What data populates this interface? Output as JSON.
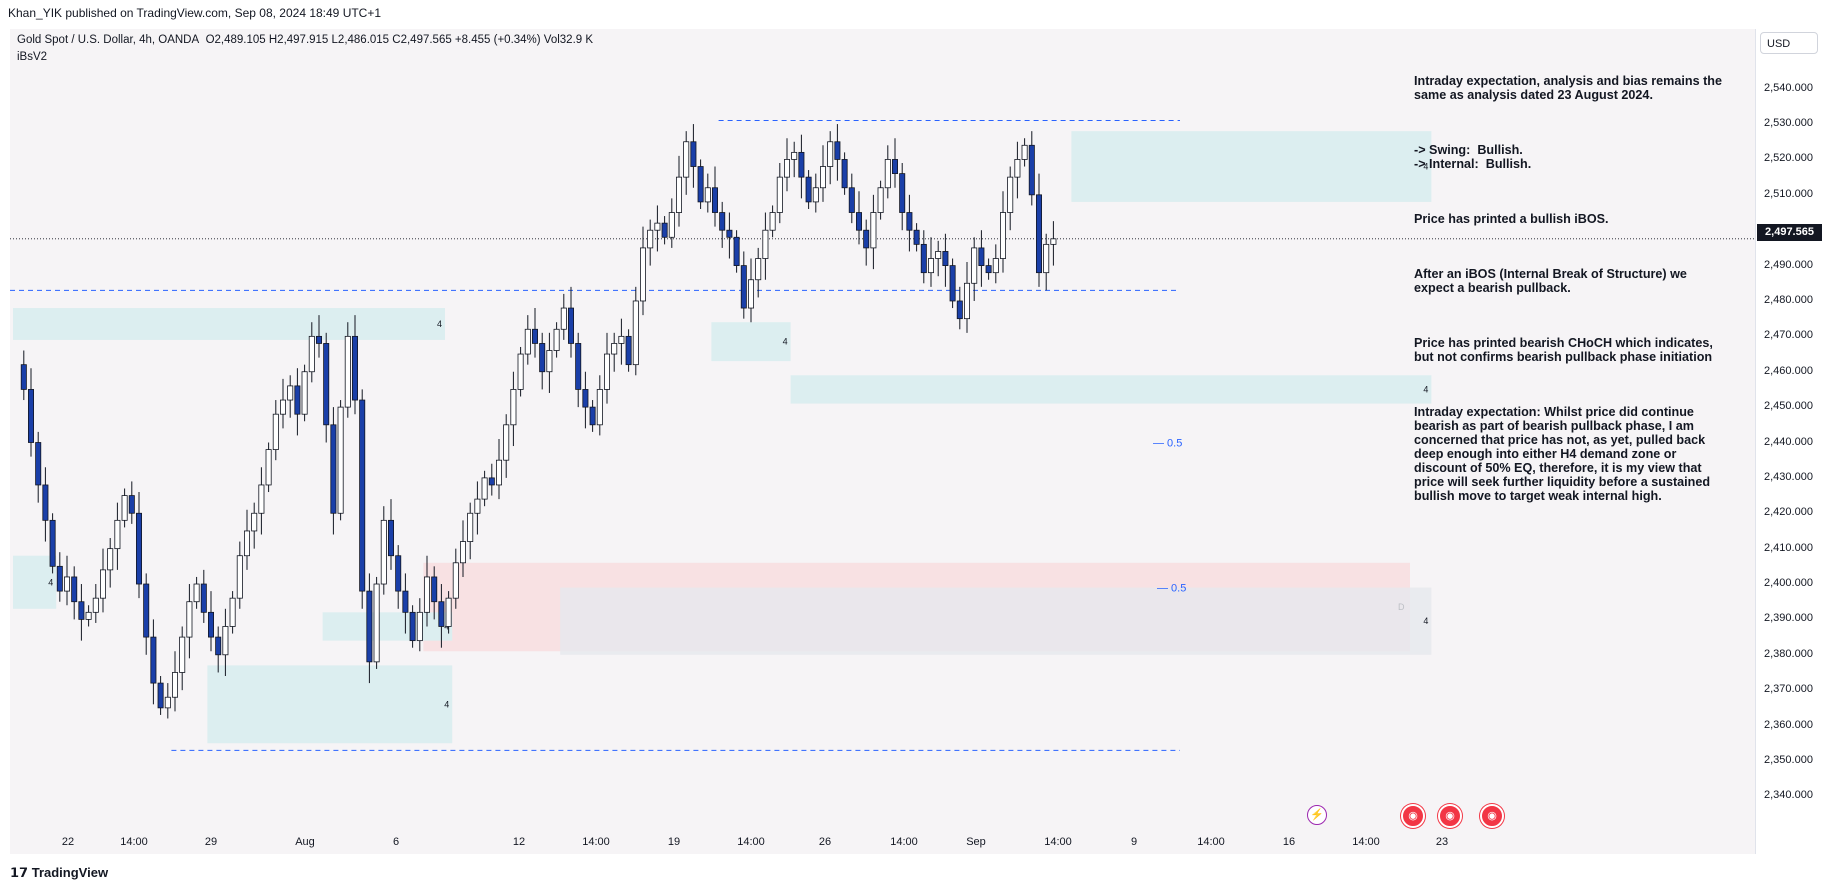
{
  "header": {
    "published": "Khan_YIK published on TradingView.com, Sep 08, 2024 18:49 UTC+1"
  },
  "symbol_info": {
    "symbol": "Gold Spot / U.S. Dollar, 4h, OANDA",
    "ohlc": "O2,489.105  H2,497.915  L2,486.015  C2,497.565  +8.455 (+0.34%)  Vol32.9 K",
    "indicator": "iBsV2"
  },
  "price_axis": {
    "currency": "USD",
    "ticks": [
      "2,540.000",
      "2,530.000",
      "2,520.000",
      "2,510.000",
      "2,500.000",
      "2,490.000",
      "2,480.000",
      "2,470.000",
      "2,460.000",
      "2,450.000",
      "2,440.000",
      "2,430.000",
      "2,420.000",
      "2,410.000",
      "2,400.000",
      "2,390.000",
      "2,380.000",
      "2,370.000",
      "2,360.000",
      "2,350.000",
      "2,340.000"
    ],
    "last_price": "2,497.565"
  },
  "time_axis": {
    "ticks": [
      "22",
      "14:00",
      "29",
      "Aug",
      "6",
      "12",
      "14:00",
      "19",
      "14:00",
      "26",
      "14:00",
      "Sep",
      "14:00",
      "9",
      "14:00",
      "16",
      "14:00",
      "23"
    ]
  },
  "annotation": {
    "paragraphs": [
      "Intraday expectation, analysis and bias remains the same as analysis dated 23 August 2024.",
      "-> Swing:  Bullish.\n-> Internal:  Bullish.",
      "Price has printed a bullish iBOS.",
      "After an iBOS (Internal Break of Structure) we expect a bearish pullback.",
      "Price has printed bearish CHoCH which indicates, but not confirms bearish pullback phase initiation",
      "Intraday expectation: Whilst price did continue bearish as part of bearish pullback phase, I am concerned that price has not, as yet, pulled back deep enough into either H4 demand zone or discount of 50% EQ, therefore, it is my view that price will seek further liquidity before a sustained bullish move to target weak internal high."
    ]
  },
  "zone_labels": {
    "h4": "4",
    "d": "D",
    "eq": "0.5"
  },
  "footer": {
    "brand": "TradingView"
  },
  "colors": {
    "bull": "#ffffff",
    "bear": "#1a3fa8",
    "wick": "#131722",
    "demand": "#dceef0",
    "premium": "#f8e1e3",
    "dash": "#2962ff"
  },
  "chart_data": {
    "type": "candlestick",
    "title": "Gold Spot / U.S. Dollar, 4h, OANDA",
    "ylim": [
      2335,
      2545
    ],
    "y_ticks": [
      2340,
      2350,
      2360,
      2370,
      2380,
      2390,
      2400,
      2410,
      2420,
      2430,
      2440,
      2450,
      2460,
      2470,
      2480,
      2490,
      2500,
      2510,
      2520,
      2530,
      2540
    ],
    "last_close": 2497.565,
    "close_path": [
      2462,
      2455,
      2440,
      2428,
      2418,
      2405,
      2398,
      2402,
      2395,
      2390,
      2392,
      2396,
      2404,
      2410,
      2418,
      2425,
      2420,
      2400,
      2385,
      2372,
      2365,
      2368,
      2375,
      2385,
      2395,
      2400,
      2392,
      2385,
      2380,
      2388,
      2396,
      2408,
      2415,
      2420,
      2428,
      2438,
      2448,
      2452,
      2456,
      2448,
      2460,
      2470,
      2468,
      2445,
      2420,
      2450,
      2470,
      2452,
      2398,
      2378,
      2400,
      2418,
      2408,
      2398,
      2392,
      2384,
      2392,
      2402,
      2395,
      2388,
      2396,
      2406,
      2412,
      2420,
      2424,
      2430,
      2428,
      2435,
      2445,
      2455,
      2465,
      2472,
      2468,
      2460,
      2466,
      2472,
      2478,
      2468,
      2455,
      2450,
      2445,
      2455,
      2465,
      2468,
      2470,
      2462,
      2480,
      2495,
      2500,
      2502,
      2498,
      2505,
      2515,
      2525,
      2518,
      2508,
      2512,
      2505,
      2500,
      2498,
      2490,
      2478,
      2486,
      2492,
      2500,
      2505,
      2515,
      2520,
      2522,
      2515,
      2508,
      2512,
      2518,
      2525,
      2520,
      2512,
      2505,
      2500,
      2495,
      2505,
      2512,
      2520,
      2516,
      2505,
      2500,
      2496,
      2488,
      2492,
      2494,
      2490,
      2480,
      2475,
      2485,
      2495,
      2490,
      2488,
      2492,
      2505,
      2515,
      2520,
      2524,
      2510,
      2488,
      2496,
      2497.565
    ],
    "zones": [
      {
        "label": "4",
        "from_bar": 0,
        "to_bar": 60,
        "top": 2478,
        "bottom": 2469
      },
      {
        "label": "4",
        "from_bar": 0,
        "to_bar": 6,
        "top": 2408,
        "bottom": 2393
      },
      {
        "label": "4",
        "from_bar": 43,
        "to_bar": 61,
        "top": 2392,
        "bottom": 2384
      },
      {
        "label": "4",
        "from_bar": 27,
        "to_bar": 61,
        "top": 2377,
        "bottom": 2355
      },
      {
        "label": "4",
        "from_bar": 97,
        "to_bar": 108,
        "top": 2474,
        "bottom": 2463
      },
      {
        "label": "4",
        "from_bar": 108,
        "to_bar": 197,
        "top": 2459,
        "bottom": 2451
      },
      {
        "label": "4",
        "from_bar": 147,
        "to_bar": 197,
        "top": 2528,
        "bottom": 2508
      },
      {
        "label": "4",
        "from_bar": 76,
        "to_bar": 197,
        "top": 2399,
        "bottom": 2380
      }
    ],
    "premium_zone": {
      "label": "D",
      "top": 2406,
      "bottom": 2381
    },
    "dashed_levels": [
      2531,
      2483,
      2353
    ],
    "eq_levels": [
      {
        "label": "0.5",
        "price": 2440
      },
      {
        "label": "0.5",
        "price": 2399
      }
    ]
  }
}
